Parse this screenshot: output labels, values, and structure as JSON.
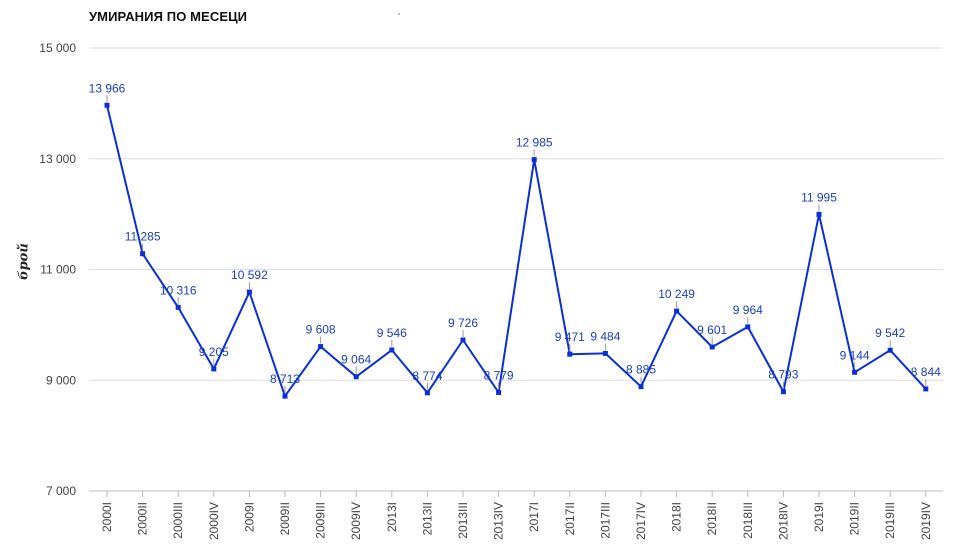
{
  "chart_data": {
    "type": "line",
    "title": "УМИРАНИЯ ПО МЕСЕЦИ",
    "stray_mark": "·",
    "ylabel": "брой",
    "xlabel": "",
    "ylim": [
      7000,
      15000
    ],
    "yticks": [
      7000,
      9000,
      11000,
      13000,
      15000
    ],
    "ytick_labels": [
      "7 000",
      "9 000",
      "11 000",
      "13 000",
      "15 000"
    ],
    "grid": true,
    "legend": "none",
    "line_color": "#0a2fd6",
    "label_color": "#1a3fbf",
    "grid_color": "#dddddd",
    "categories": [
      "2000I",
      "2000II",
      "2000III",
      "2000IV",
      "2009I",
      "2009II",
      "2009III",
      "2009IV",
      "2013I",
      "2013II",
      "2013III",
      "2013IV",
      "2017I",
      "2017II",
      "2017III",
      "2017IV",
      "2018I",
      "2018II",
      "2018III",
      "2018IV",
      "2019I",
      "2019II",
      "2019III",
      "2019IV"
    ],
    "values": [
      13966,
      11285,
      10316,
      9205,
      10592,
      8713,
      9608,
      9064,
      9546,
      8774,
      9726,
      8779,
      12985,
      9471,
      9484,
      8885,
      10249,
      9601,
      9964,
      8793,
      11995,
      9144,
      9542,
      8844
    ],
    "value_labels": [
      "13 966",
      "11 285",
      "10 316",
      "9 205",
      "10 592",
      "8 713",
      "9 608",
      "9 064",
      "9 546",
      "8 774",
      "9 726",
      "8 779",
      "12 985",
      "9 471",
      "9 484",
      "8 885",
      "10 249",
      "9 601",
      "9 964",
      "8 793",
      "11 995",
      "9 144",
      "9 542",
      "8 844"
    ]
  }
}
